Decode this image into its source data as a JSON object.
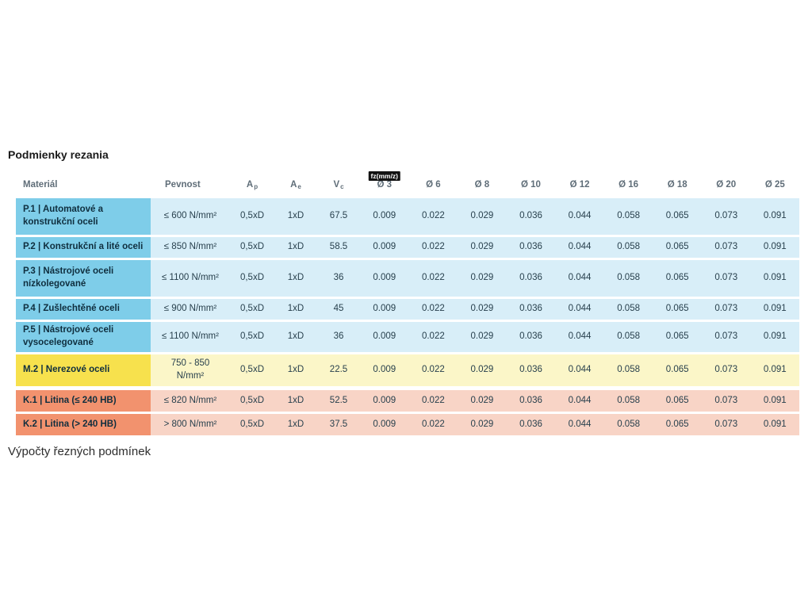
{
  "title": "Podmienky rezania",
  "footer": "Výpočty řezných podmínek",
  "colors": {
    "steel_cell": "#7ecde9",
    "steel_row": "#d8eef8",
    "stainless_cell": "#f7e14d",
    "stainless_row": "#fbf6c8",
    "cast_iron_cell": "#f2926e",
    "cast_iron_row": "#f8d4c6"
  },
  "table": {
    "headers": {
      "material": "Materiál",
      "pevnost": "Pevnost",
      "ap_base": "A",
      "ap_sub": "p",
      "ae_base": "A",
      "ae_sub": "e",
      "vc_base": "V",
      "vc_sub": "c",
      "fz_badge": "fz(mm/z)",
      "diameters": [
        "Ø 3",
        "Ø 6",
        "Ø 8",
        "Ø 10",
        "Ø 12",
        "Ø 16",
        "Ø 18",
        "Ø 20",
        "Ø 25"
      ]
    },
    "rows": [
      {
        "name": "P.1 | Automatové a konstrukční oceli",
        "pevnost": "≤ 600 N/mm²",
        "ap": "0,5xD",
        "ae": "1xD",
        "vc": "67.5",
        "fz": [
          "0.009",
          "0.022",
          "0.029",
          "0.036",
          "0.044",
          "0.058",
          "0.065",
          "0.073",
          "0.091"
        ]
      },
      {
        "name": "P.2 | Konstrukční a lité oceli",
        "pevnost": "≤ 850 N/mm²",
        "ap": "0,5xD",
        "ae": "1xD",
        "vc": "58.5",
        "fz": [
          "0.009",
          "0.022",
          "0.029",
          "0.036",
          "0.044",
          "0.058",
          "0.065",
          "0.073",
          "0.091"
        ]
      },
      {
        "name": "P.3 | Nástrojové oceli nízkolegované",
        "pevnost": "≤ 1100 N/mm²",
        "ap": "0,5xD",
        "ae": "1xD",
        "vc": "36",
        "fz": [
          "0.009",
          "0.022",
          "0.029",
          "0.036",
          "0.044",
          "0.058",
          "0.065",
          "0.073",
          "0.091"
        ]
      },
      {
        "name": "P.4 | Zušlechtěné oceli",
        "pevnost": "≤ 900 N/mm²",
        "ap": "0,5xD",
        "ae": "1xD",
        "vc": "45",
        "fz": [
          "0.009",
          "0.022",
          "0.029",
          "0.036",
          "0.044",
          "0.058",
          "0.065",
          "0.073",
          "0.091"
        ]
      },
      {
        "name": "P.5 | Nástrojové oceli vysocelegované",
        "pevnost": "≤ 1100 N/mm²",
        "ap": "0,5xD",
        "ae": "1xD",
        "vc": "36",
        "fz": [
          "0.009",
          "0.022",
          "0.029",
          "0.036",
          "0.044",
          "0.058",
          "0.065",
          "0.073",
          "0.091"
        ]
      },
      {
        "name": "M.2 | Nerezové oceli",
        "pevnost": "750 - 850 N/mm²",
        "ap": "0,5xD",
        "ae": "1xD",
        "vc": "22.5",
        "fz": [
          "0.009",
          "0.022",
          "0.029",
          "0.036",
          "0.044",
          "0.058",
          "0.065",
          "0.073",
          "0.091"
        ]
      },
      {
        "name": "K.1 | Litina (≤ 240 HB)",
        "pevnost": "≤ 820 N/mm²",
        "ap": "0,5xD",
        "ae": "1xD",
        "vc": "52.5",
        "fz": [
          "0.009",
          "0.022",
          "0.029",
          "0.036",
          "0.044",
          "0.058",
          "0.065",
          "0.073",
          "0.091"
        ]
      },
      {
        "name": "K.2 | Litina (> 240 HB)",
        "pevnost": "> 800 N/mm²",
        "ap": "0,5xD",
        "ae": "1xD",
        "vc": "37.5",
        "fz": [
          "0.009",
          "0.022",
          "0.029",
          "0.036",
          "0.044",
          "0.058",
          "0.065",
          "0.073",
          "0.091"
        ]
      }
    ]
  }
}
